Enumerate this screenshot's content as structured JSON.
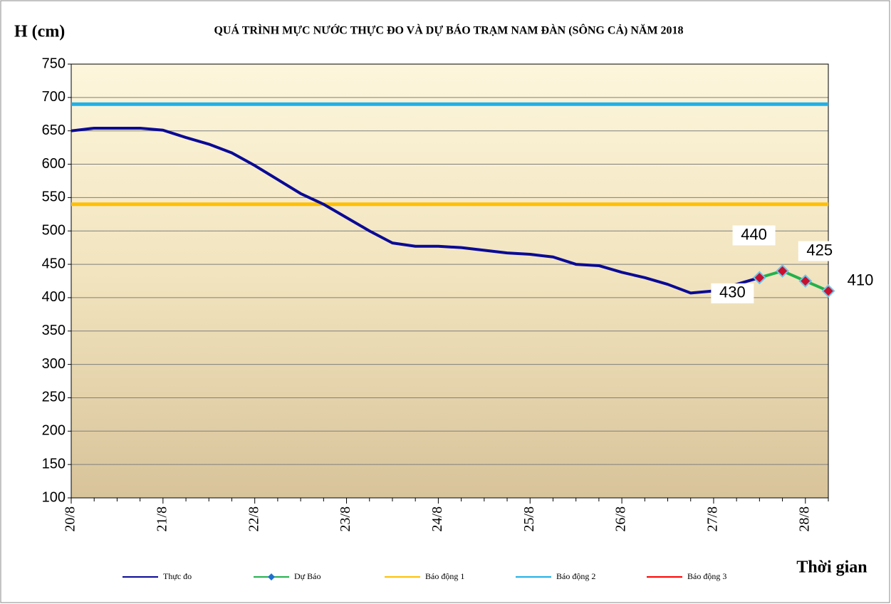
{
  "chart_data": {
    "type": "line",
    "title": "QUÁ TRÌNH MỰC NƯỚC THỰC ĐO VÀ DỰ BÁO TRẠM NAM ĐÀN (SÔNG CẢ) NĂM 2018",
    "y_label": "H (cm)",
    "x_label": "Thời gian",
    "categories": [
      "20/8",
      null,
      null,
      null,
      "21/8",
      null,
      null,
      null,
      "22/8",
      null,
      null,
      null,
      "23/8",
      null,
      null,
      null,
      "24/8",
      null,
      null,
      null,
      "25/8",
      null,
      null,
      null,
      "26/8",
      null,
      null,
      null,
      "27/8",
      null,
      null,
      null,
      "28/8",
      null
    ],
    "series": [
      {
        "name": "Thực đo",
        "color": "#0a0a96",
        "values": [
          650,
          654,
          654,
          654,
          651,
          640,
          630,
          617,
          598,
          577,
          556,
          540,
          520,
          500,
          482,
          477,
          477,
          475,
          471,
          467,
          465,
          461,
          450,
          448,
          438,
          430,
          420,
          407,
          410,
          420,
          430,
          null,
          null,
          null
        ]
      },
      {
        "name": "Dự Báo",
        "color": "#22b14c",
        "marker_color": "#c8102e",
        "values": [
          null,
          null,
          null,
          null,
          null,
          null,
          null,
          null,
          null,
          null,
          null,
          null,
          null,
          null,
          null,
          null,
          null,
          null,
          null,
          null,
          null,
          null,
          null,
          null,
          null,
          null,
          null,
          null,
          null,
          null,
          430,
          440,
          425,
          410
        ]
      }
    ],
    "reference_lines": [
      {
        "name": "Báo động 1",
        "color": "#ffc000",
        "value": 540
      },
      {
        "name": "Báo động 2",
        "color": "#1fb0e8",
        "value": 690
      },
      {
        "name": "Báo động 3",
        "color": "#ff0000",
        "value": null
      }
    ],
    "ylim": [
      100,
      750
    ],
    "yticks": [
      100,
      150,
      200,
      250,
      300,
      350,
      400,
      450,
      500,
      550,
      600,
      650,
      700,
      750
    ],
    "grid": true,
    "legend": "bottom"
  }
}
